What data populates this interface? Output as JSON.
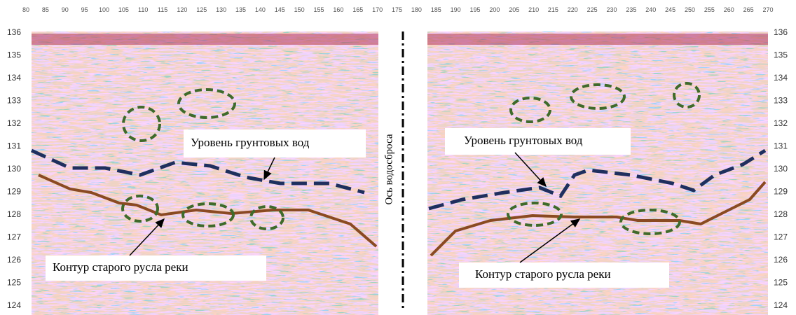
{
  "x_ticks": [
    "80",
    "85",
    "90",
    "95",
    "100",
    "105",
    "110",
    "115",
    "120",
    "125",
    "130",
    "135",
    "140",
    "145",
    "150",
    "155",
    "160",
    "165",
    "170",
    "175",
    "180",
    "185",
    "190",
    "195",
    "200",
    "205",
    "210",
    "215",
    "220",
    "225",
    "230",
    "235",
    "240",
    "245",
    "250",
    "255",
    "260",
    "265",
    "270"
  ],
  "y_ticks_left": [
    "136",
    "135",
    "134",
    "133",
    "132",
    "131",
    "130",
    "129",
    "128",
    "127",
    "126",
    "125",
    "124"
  ],
  "y_ticks_right": [
    "136",
    "135",
    "134",
    "133",
    "132",
    "131",
    "130",
    "129",
    "128",
    "127",
    "126",
    "125",
    "124"
  ],
  "axis_label": "Ось водосброса",
  "annotations": {
    "left_groundwater": "Уровень грунтовых вод",
    "left_river": "Контур старого русла реки",
    "right_groundwater": "Уровень грунтовых вод",
    "right_river": "Контур старого русла реки"
  }
}
